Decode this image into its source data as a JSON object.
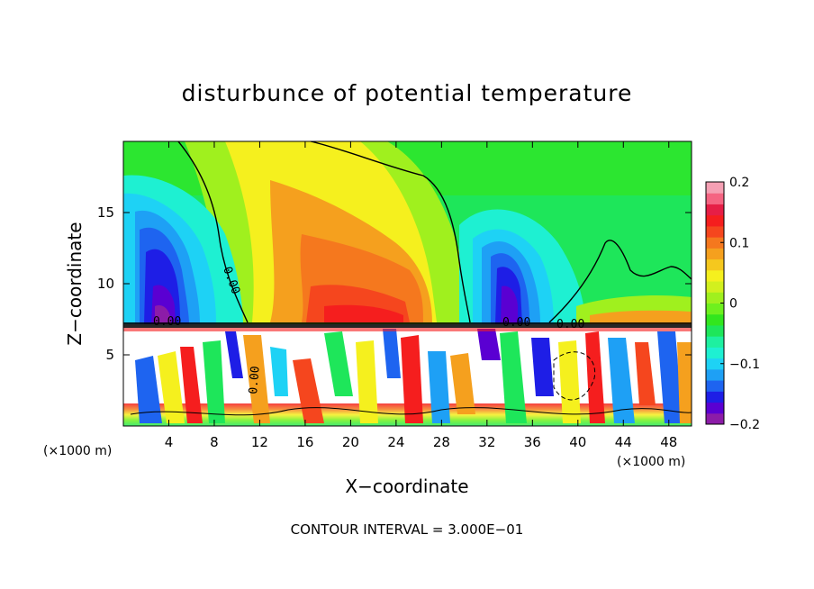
{
  "chart_data": {
    "type": "heatmap",
    "title": "disturbunce of potential temperature",
    "xlabel": "X−coordinate",
    "ylabel": "Z−coordinate",
    "x_unit_left": "(×1000 m)",
    "x_unit_right": "(×1000 m)",
    "xlim": [
      0,
      50
    ],
    "ylim": [
      0,
      20
    ],
    "x_ticks": [
      4,
      8,
      12,
      16,
      20,
      24,
      28,
      32,
      36,
      40,
      44,
      48
    ],
    "y_ticks": [
      5,
      10,
      15
    ],
    "colorbar": {
      "range": [
        -0.2,
        0.2
      ],
      "ticks": [
        {
          "value": 0.2,
          "label": "0.2"
        },
        {
          "value": 0.1,
          "label": "0.1"
        },
        {
          "value": 0,
          "label": "0"
        },
        {
          "value": -0.1,
          "label": "−0.1"
        },
        {
          "value": -0.2,
          "label": "−0.2"
        }
      ],
      "colors": [
        "#8c1ca8",
        "#5a00d2",
        "#1e1ee6",
        "#1e64f0",
        "#1ea0f5",
        "#1ed2f5",
        "#1ef0d2",
        "#1ef0a0",
        "#1ee65a",
        "#32e61e",
        "#6ef01e",
        "#a0f01e",
        "#d2f01e",
        "#f5f01e",
        "#f5c81e",
        "#f5a01e",
        "#f5781e",
        "#f5461e",
        "#f51e1e",
        "#e61e46",
        "#f56482",
        "#f5a0b4"
      ]
    },
    "contour_labels": [
      "0.00",
      "0.00",
      "0.00",
      "0.00",
      "0.00"
    ],
    "contour_interval_text": "CONTOUR INTERVAL = 3.000E−01"
  }
}
